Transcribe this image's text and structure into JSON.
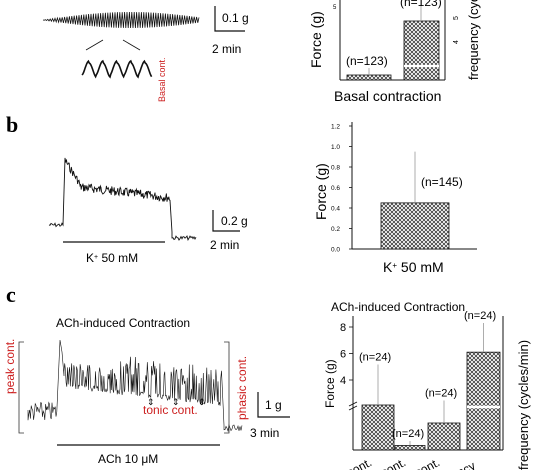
{
  "panels": {
    "a": {
      "scale_force": "0.1 g",
      "scale_time": "2 min",
      "inset_label": "Basal cont.",
      "chart_data": {
        "type": "bar",
        "categories": [
          "Basal contraction"
        ],
        "series": [
          {
            "name": "Force (g)",
            "values": [
              0.05
            ],
            "n_label": "(n=123)"
          },
          {
            "name": "frequency (cycles/min)",
            "values": [
              4.7
            ],
            "n_label": "(n=123)"
          }
        ],
        "ylabel": "Force (g)",
        "y2label": "frequency (cycles/min)",
        "y2_ticks": [
          "4",
          "5"
        ],
        "y_ticks": [
          "5"
        ],
        "xlabel": "Basal contraction",
        "pattern": "crosshatch"
      }
    },
    "b": {
      "letter": "b",
      "scale_force": "0.2 g",
      "scale_time": "2 min",
      "stim_label": "K",
      "stim_sup": "+",
      "stim_conc": " 50 mM",
      "chart_data": {
        "type": "bar",
        "categories": [
          "K+ 50 mM"
        ],
        "values": [
          0.45
        ],
        "error": [
          0.5
        ],
        "n_label": "(n=145)",
        "ylabel": "Force (g)",
        "ylim": [
          0,
          1.2
        ],
        "y_ticks": [
          "0.0",
          "0.2",
          "0.4",
          "0.6",
          "0.8",
          "1.0",
          "1.2"
        ],
        "xlabel_main": "K",
        "xlabel_sup": "+",
        "xlabel_rest": " 50 mM",
        "pattern": "crosshatch"
      }
    },
    "c": {
      "letter": "c",
      "title": "ACh-induced Contraction",
      "peak_label": "peak cont.",
      "phasic_label": "phasic cont.",
      "tonic_label": "tonic cont.",
      "scale_force": "1 g",
      "scale_time": "3 min",
      "stim_label": "ACh 10 μM",
      "chart_data": {
        "type": "bar",
        "title": "ACh-induced Contraction",
        "categories": [
          "cont.",
          "cont.",
          "cont.",
          "ncy"
        ],
        "values": [
          0.5,
          0.05,
          0.3,
          6.1
        ],
        "error": [
          0.45,
          0.05,
          0.25,
          2.2
        ],
        "n_labels": [
          "(n=24)",
          "(n=24)",
          "(n=24)",
          "(n=24)"
        ],
        "ylabel": "Force (g)",
        "y2label": "frequency (cycles/min)",
        "y_ticks": [
          "4",
          "6",
          "8"
        ],
        "pattern": "crosshatch"
      }
    }
  }
}
